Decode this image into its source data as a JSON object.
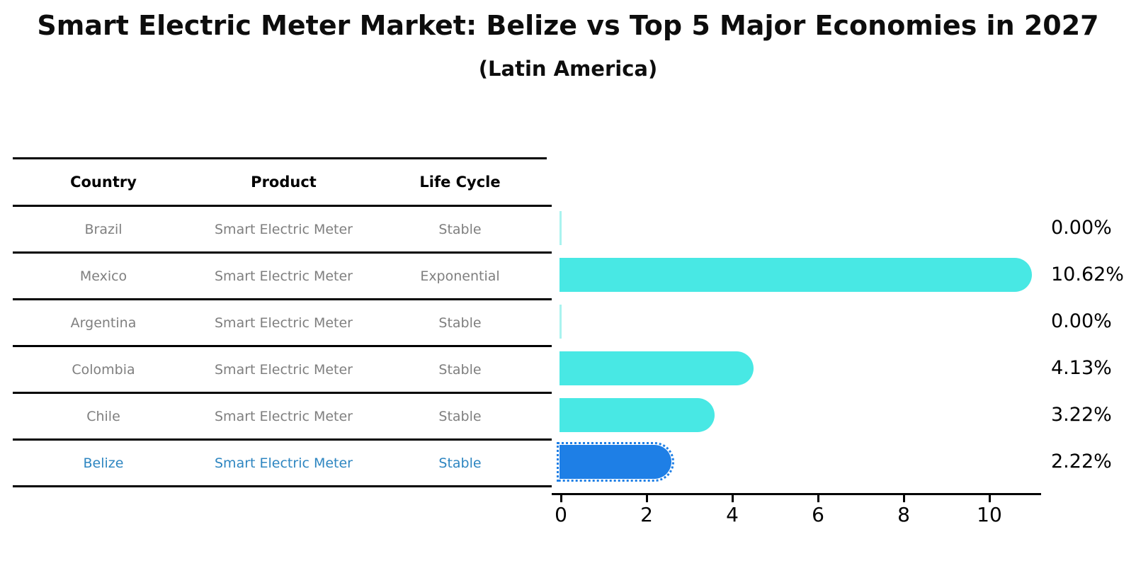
{
  "title": "Smart Electric Meter Market: Belize vs Top 5 Major Economies in 2027",
  "subtitle": "(Latin America)",
  "table": {
    "headers": [
      "Country",
      "Product",
      "Life Cycle"
    ],
    "rows": [
      {
        "country": "Brazil",
        "product": "Smart Electric Meter",
        "life_cycle": "Stable",
        "highlight": false
      },
      {
        "country": "Mexico",
        "product": "Smart Electric Meter",
        "life_cycle": "Exponential",
        "highlight": false
      },
      {
        "country": "Argentina",
        "product": "Smart Electric Meter",
        "life_cycle": "Stable",
        "highlight": false
      },
      {
        "country": "Colombia",
        "product": "Smart Electric Meter",
        "life_cycle": "Stable",
        "highlight": false
      },
      {
        "country": "Chile",
        "product": "Smart Electric Meter",
        "life_cycle": "Stable",
        "highlight": false
      },
      {
        "country": "Belize",
        "product": "Smart Electric Meter",
        "life_cycle": "Stable",
        "highlight": true
      }
    ]
  },
  "chart_data": {
    "type": "bar",
    "orientation": "horizontal",
    "title": "Smart Electric Meter Market: Belize vs Top 5 Major Economies in 2027 (Latin America)",
    "categories": [
      "Brazil",
      "Mexico",
      "Argentina",
      "Colombia",
      "Chile",
      "Belize"
    ],
    "values": [
      0.0,
      10.62,
      0.0,
      4.13,
      3.22,
      2.22
    ],
    "value_labels": [
      "0.00%",
      "10.62%",
      "0.00%",
      "4.13%",
      "3.22%",
      "2.22%"
    ],
    "xlabel": "",
    "ylabel": "",
    "xlim": [
      0,
      11.3
    ],
    "x_ticks": [
      0,
      2,
      4,
      6,
      8,
      10
    ],
    "x_tick_labels": [
      "0",
      "2",
      "4",
      "6",
      "8",
      "10"
    ],
    "grid": false,
    "legend": false,
    "highlight_index": 5
  },
  "colors": {
    "bar_default": "#48E8E4",
    "bar_zero": "#a9f3ef",
    "bar_highlight": "#1E7FE6",
    "highlight_text": "#2E86C1",
    "table_text": "#7f7f7f",
    "axis": "#000000"
  }
}
